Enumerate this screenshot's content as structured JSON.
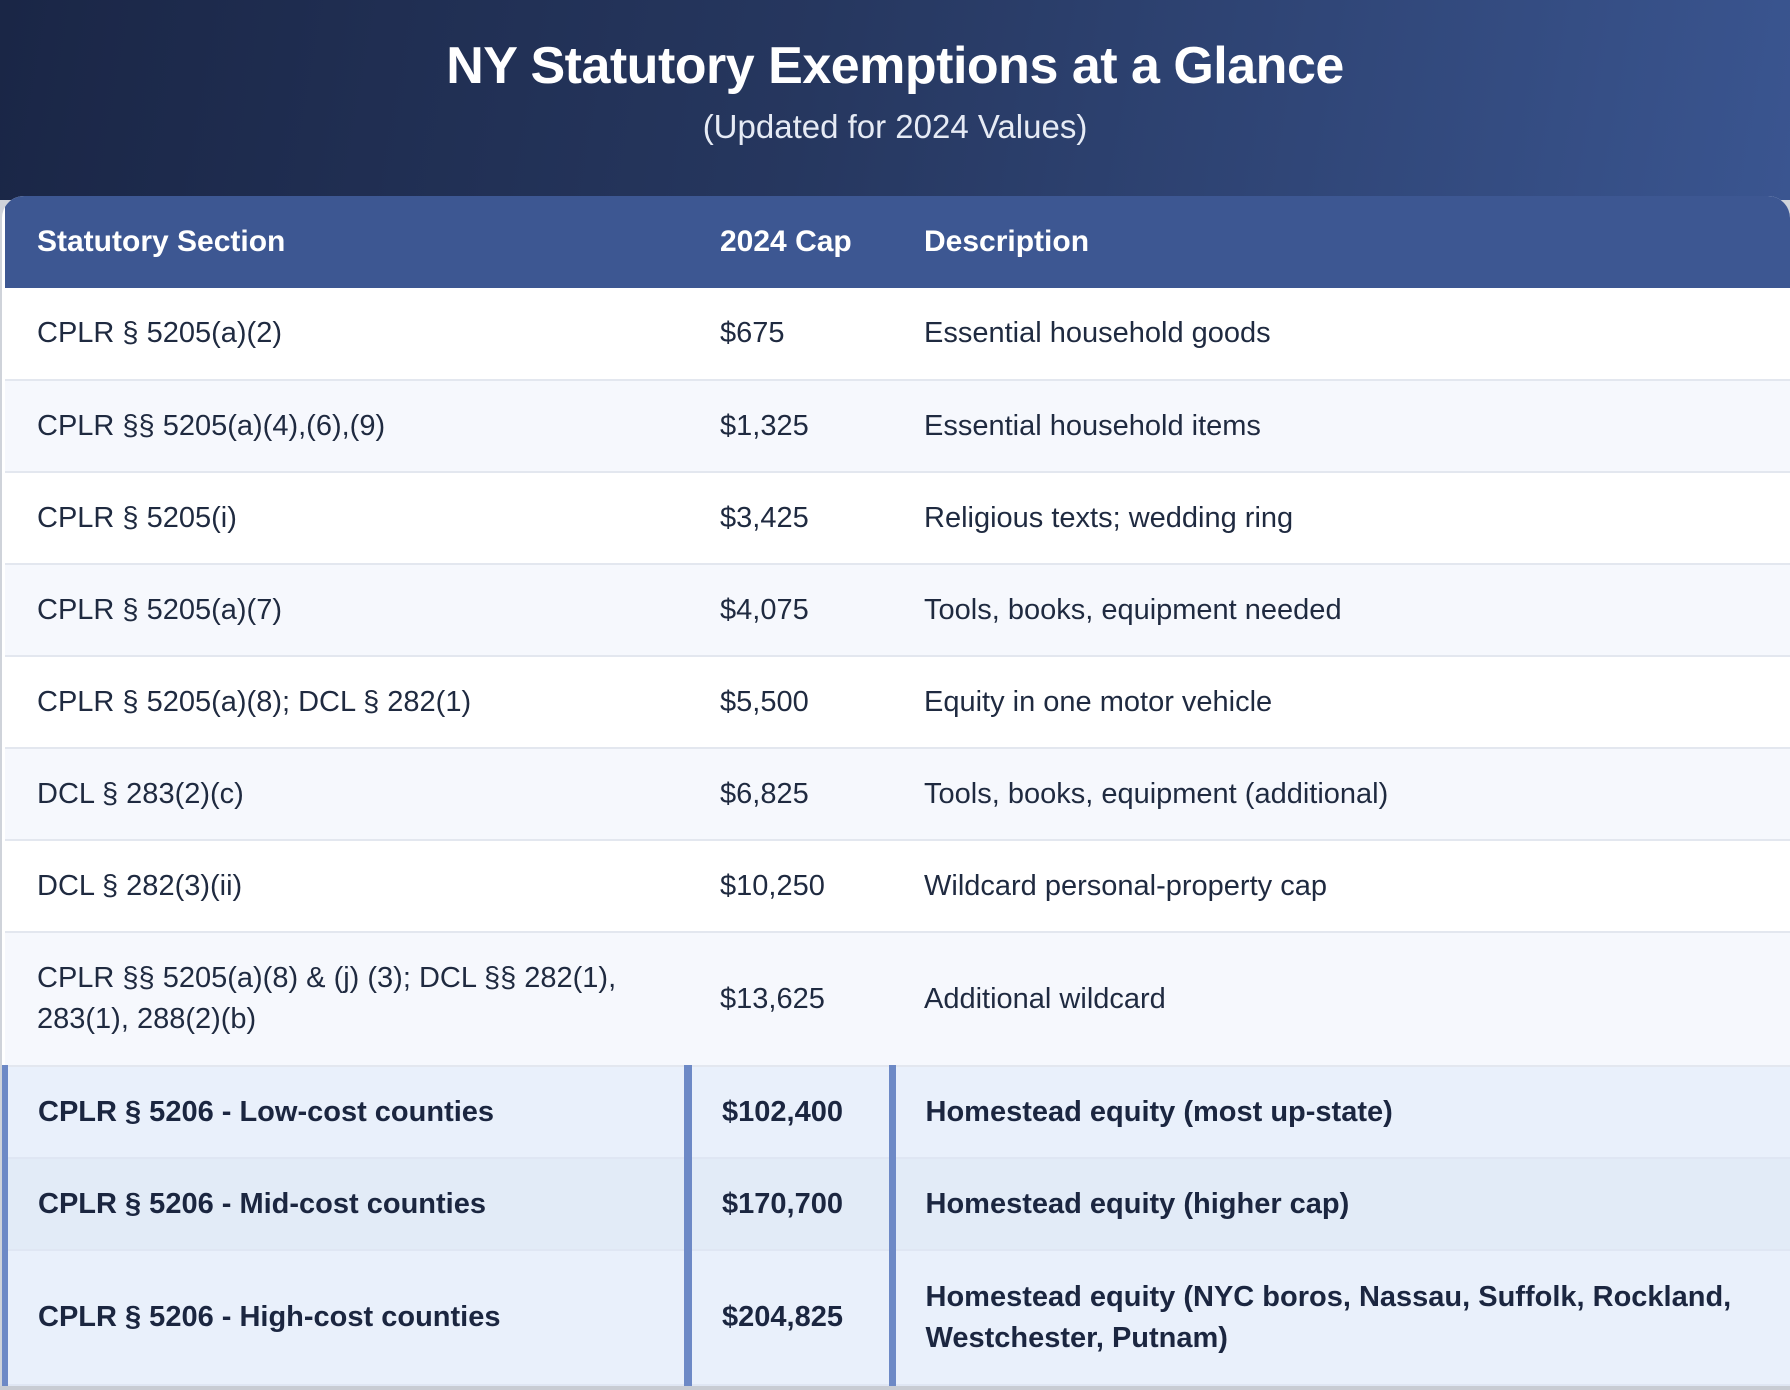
{
  "header": {
    "title": "NY Statutory Exemptions at a Glance",
    "subtitle": "(Updated for 2024 Values)"
  },
  "table": {
    "columns": [
      "Statutory Section",
      "2024 Cap",
      "Description"
    ],
    "rows": [
      {
        "section": "CPLR § 5205(a)(2)",
        "cap": "$675",
        "description": "Essential household goods"
      },
      {
        "section": "CPLR §§ 5205(a)(4),(6),(9)",
        "cap": "$1,325",
        "description": "Essential household items"
      },
      {
        "section": "CPLR § 5205(i)",
        "cap": "$3,425",
        "description": "Religious texts; wedding ring"
      },
      {
        "section": "CPLR § 5205(a)(7)",
        "cap": "$4,075",
        "description": "Tools, books, equipment needed"
      },
      {
        "section": "CPLR § 5205(a)(8); DCL § 282(1)",
        "cap": "$5,500",
        "description": "Equity in one motor vehicle"
      },
      {
        "section": "DCL § 283(2)(c)",
        "cap": "$6,825",
        "description": "Tools, books, equipment (additional)"
      },
      {
        "section": "DCL § 282(3)(ii)",
        "cap": "$10,250",
        "description": "Wildcard personal-property cap"
      },
      {
        "section": "CPLR §§ 5205(a)(8) & (j) (3); DCL §§ 282(1), 283(1), 288(2)(b)",
        "cap": "$13,625",
        "description": "Additional wildcard"
      },
      {
        "section": "CPLR § 5206 - Low-cost counties",
        "cap": "$102,400",
        "description": "Homestead equity (most up-state)"
      },
      {
        "section": "CPLR § 5206 - Mid-cost counties",
        "cap": "$170,700",
        "description": "Homestead equity (higher cap)"
      },
      {
        "section": "CPLR § 5206 - High-cost counties",
        "cap": "$204,825",
        "description": "Homestead equity (NYC boros, Nassau, Suffolk, Rockland, Westchester, Putnam)"
      }
    ]
  }
}
